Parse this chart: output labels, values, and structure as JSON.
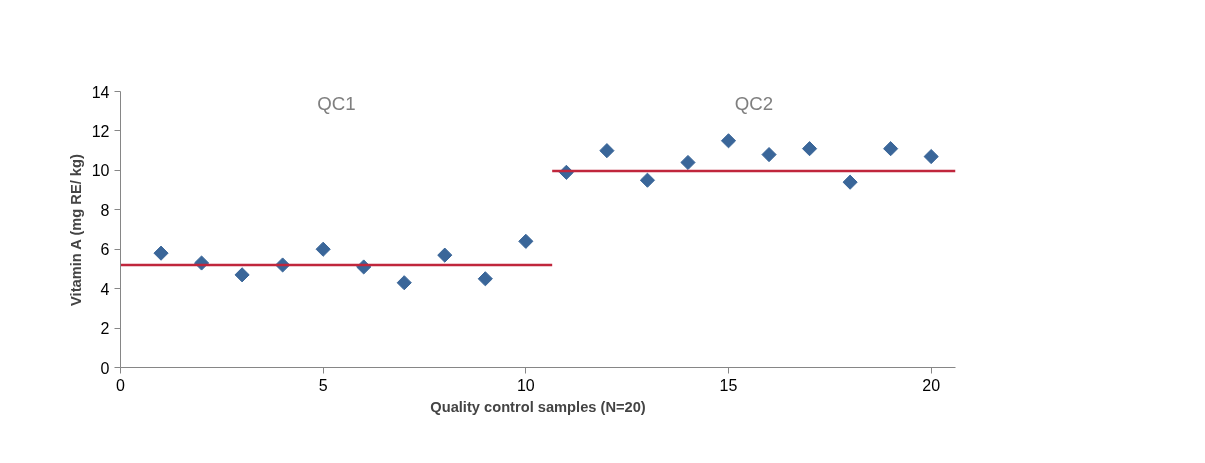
{
  "chart_data": {
    "type": "scatter",
    "xlabel": "Quality control samples (N=20)",
    "ylabel": "Vitamin A (mg RE/ kg)",
    "x": [
      1,
      2,
      3,
      4,
      5,
      6,
      7,
      8,
      9,
      10,
      11,
      12,
      13,
      14,
      15,
      16,
      17,
      18,
      19,
      20
    ],
    "series": [
      {
        "color": "#3a6699",
        "marker": "diamond",
        "values": [
          5.8,
          5.3,
          4.7,
          5.2,
          6.0,
          5.1,
          4.3,
          5.7,
          4.5,
          6.4,
          9.9,
          11.0,
          9.5,
          10.4,
          11.5,
          10.8,
          11.1,
          9.4,
          11.1,
          10.7
        ]
      },
      {
        "type": "line",
        "color": "#c0263c",
        "x": [
          0,
          10.65
        ],
        "values": [
          5.2,
          5.2
        ]
      },
      {
        "type": "line",
        "color": "#c0263c",
        "x": [
          10.65,
          20.6
        ],
        "values": [
          9.97,
          9.97
        ]
      }
    ],
    "annotations": [
      "QC1",
      "QC2"
    ],
    "xlim": [
      0,
      20.6
    ],
    "xticks": [
      0,
      5,
      10,
      15,
      20
    ],
    "ylim": [
      0,
      14
    ],
    "yticks": [
      0,
      2,
      4,
      6,
      8,
      10,
      12,
      14
    ],
    "grid": false
  }
}
